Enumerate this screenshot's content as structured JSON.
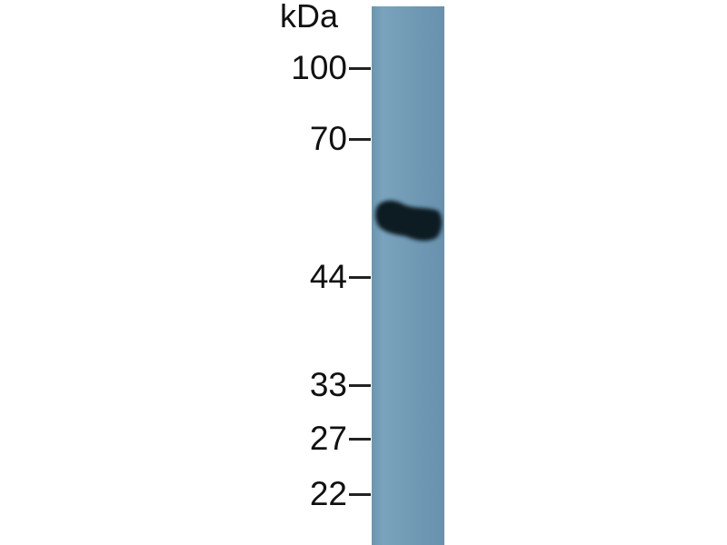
{
  "blot": {
    "unit_label": "kDa",
    "markers": [
      "100",
      "70",
      "44",
      "33",
      "27",
      "22"
    ],
    "lane_color": "#7099b4",
    "band_color": "#0d1a24"
  }
}
